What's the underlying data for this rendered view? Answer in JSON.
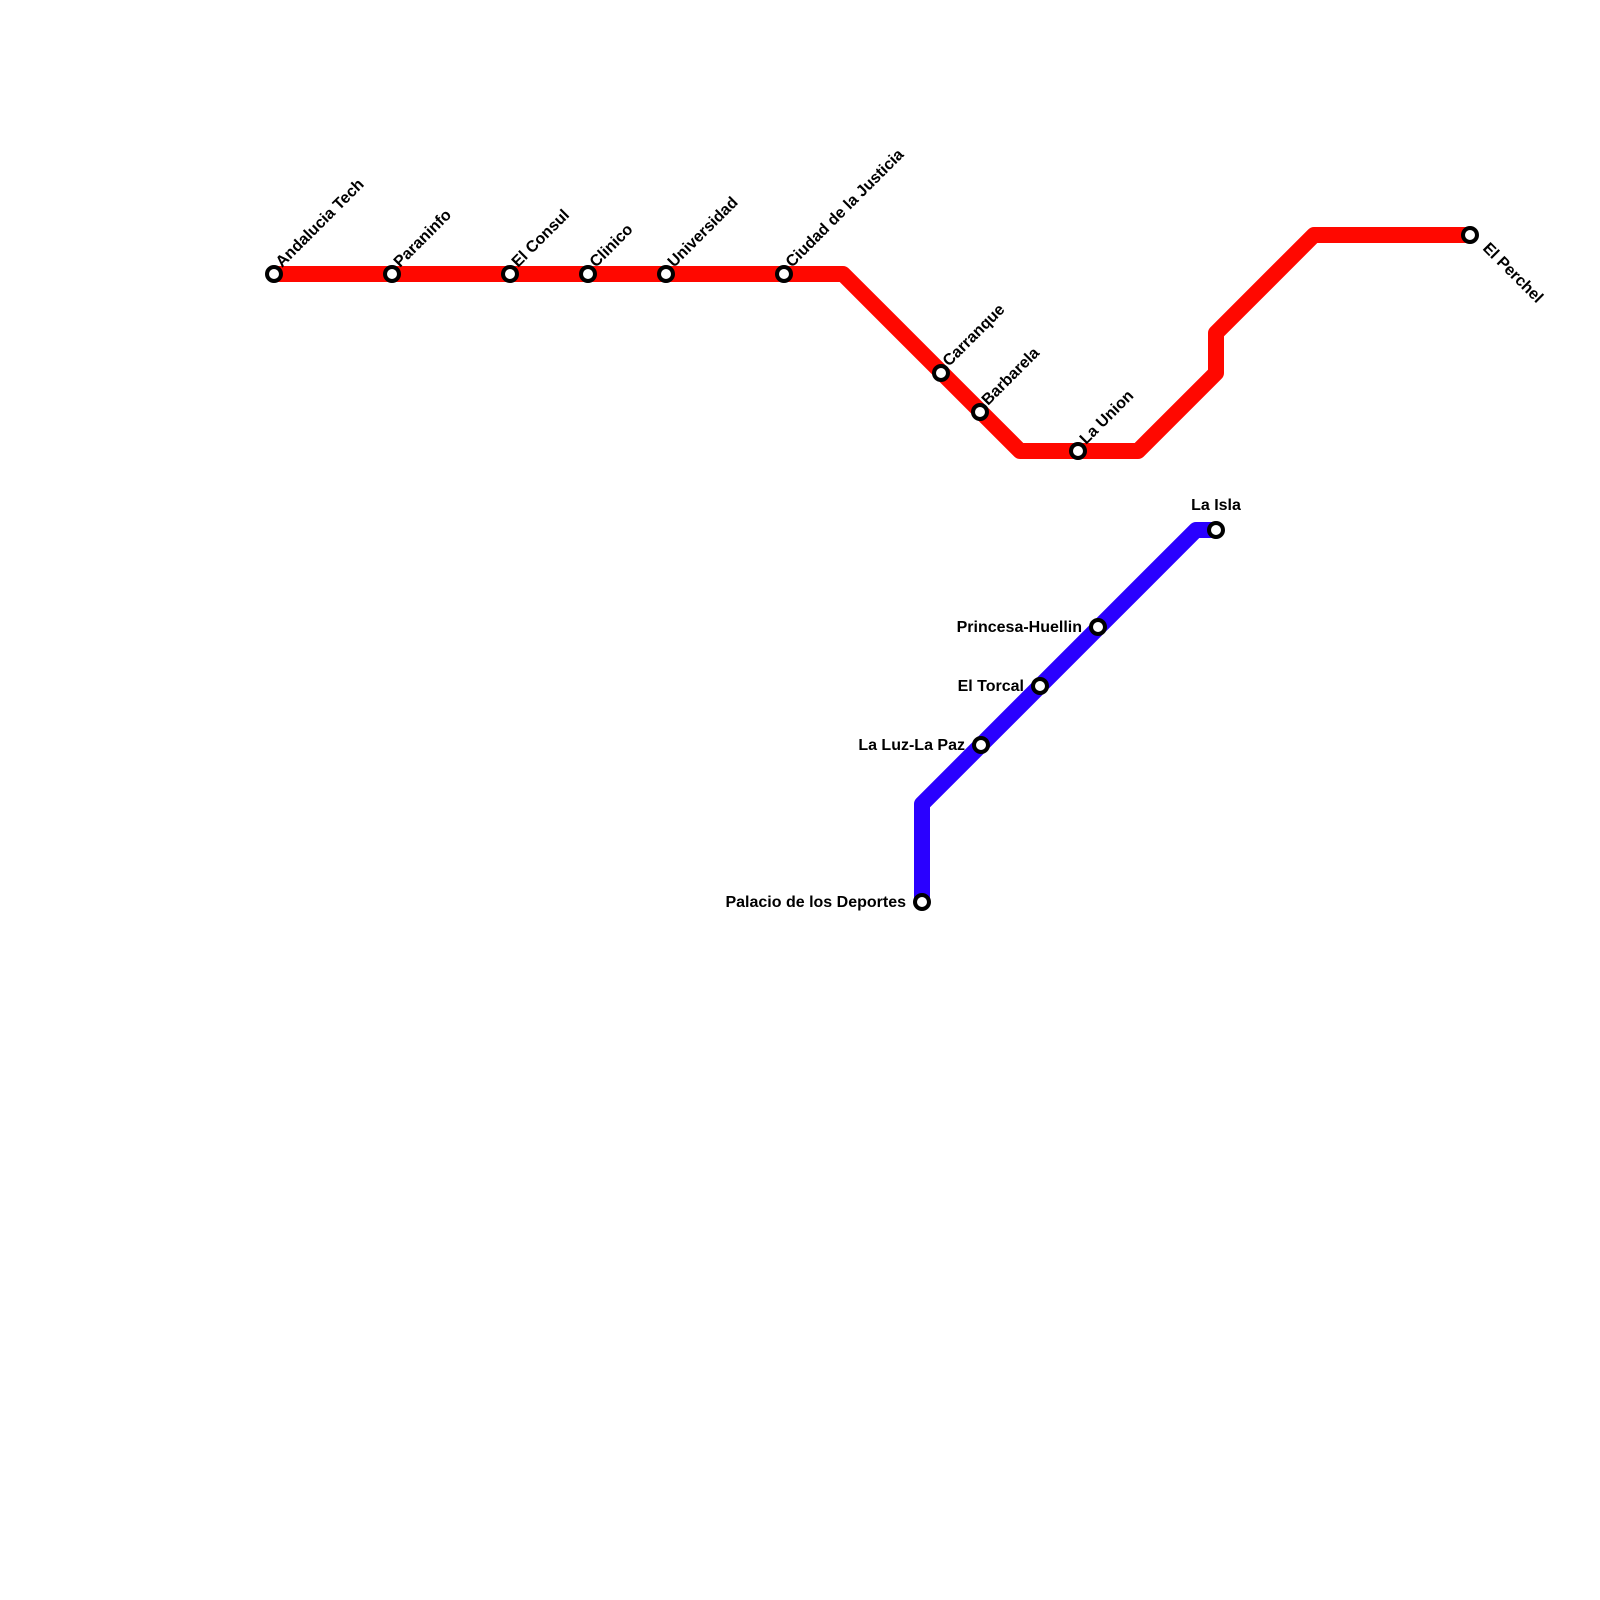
{
  "lines": [
    {
      "color": "#ff0800",
      "stations": [
        "Andalucia Tech",
        "Paraninfo",
        "El Consul",
        "Clinico",
        "Universidad",
        "Ciudad de la Justicia",
        "Carranque",
        "Barbarela",
        "La Union",
        "El Perchel"
      ]
    },
    {
      "color": "#2a00ff",
      "stations": [
        "Palacio de los Deportes",
        "La Luz-La Paz",
        "El Torcal",
        "Princesa-Huellin",
        "La Isla"
      ]
    }
  ]
}
